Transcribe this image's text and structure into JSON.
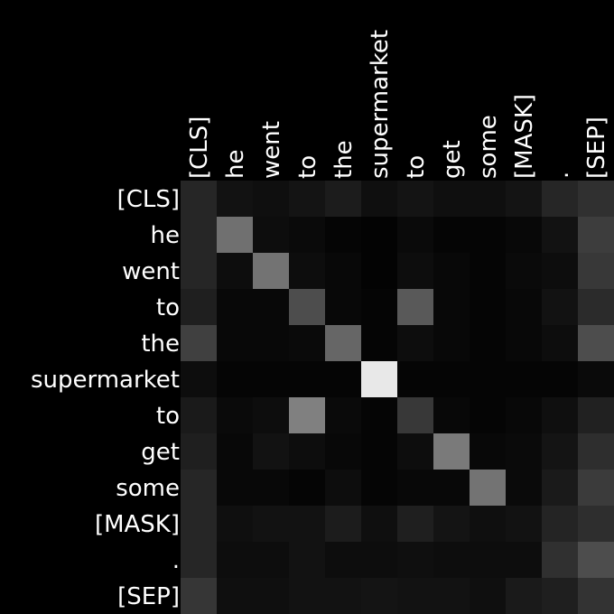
{
  "chart_data": {
    "type": "heatmap",
    "title": "",
    "xlabel": "",
    "ylabel": "",
    "colormap": "gray",
    "background": "#000000",
    "x_labels": [
      "[CLS]",
      "he",
      "went",
      "to",
      "the",
      "supermarket",
      "to",
      "get",
      "some",
      "[MASK]",
      ".",
      "[SEP]"
    ],
    "y_labels": [
      "[CLS]",
      "he",
      "went",
      "to",
      "the",
      "supermarket",
      "to",
      "get",
      "some",
      "[MASK]",
      ".",
      "[SEP]"
    ],
    "values": [
      [
        0.15,
        0.07,
        0.06,
        0.08,
        0.11,
        0.06,
        0.08,
        0.06,
        0.06,
        0.08,
        0.15,
        0.19
      ],
      [
        0.15,
        0.44,
        0.05,
        0.04,
        0.02,
        0.01,
        0.04,
        0.02,
        0.02,
        0.03,
        0.07,
        0.24
      ],
      [
        0.15,
        0.05,
        0.45,
        0.05,
        0.03,
        0.01,
        0.05,
        0.03,
        0.02,
        0.04,
        0.05,
        0.22
      ],
      [
        0.12,
        0.03,
        0.03,
        0.3,
        0.03,
        0.02,
        0.35,
        0.03,
        0.02,
        0.03,
        0.07,
        0.17
      ],
      [
        0.25,
        0.03,
        0.03,
        0.04,
        0.4,
        0.02,
        0.05,
        0.03,
        0.02,
        0.03,
        0.05,
        0.3
      ],
      [
        0.05,
        0.02,
        0.02,
        0.02,
        0.02,
        0.91,
        0.02,
        0.02,
        0.02,
        0.02,
        0.02,
        0.04
      ],
      [
        0.1,
        0.04,
        0.05,
        0.5,
        0.04,
        0.02,
        0.22,
        0.03,
        0.02,
        0.03,
        0.06,
        0.13
      ],
      [
        0.12,
        0.03,
        0.07,
        0.05,
        0.03,
        0.02,
        0.05,
        0.48,
        0.03,
        0.04,
        0.08,
        0.18
      ],
      [
        0.15,
        0.03,
        0.03,
        0.02,
        0.05,
        0.02,
        0.03,
        0.03,
        0.45,
        0.04,
        0.1,
        0.23
      ],
      [
        0.15,
        0.06,
        0.07,
        0.07,
        0.11,
        0.06,
        0.12,
        0.08,
        0.06,
        0.07,
        0.14,
        0.18
      ],
      [
        0.15,
        0.05,
        0.05,
        0.07,
        0.05,
        0.05,
        0.06,
        0.05,
        0.05,
        0.05,
        0.19,
        0.3
      ],
      [
        0.21,
        0.06,
        0.06,
        0.07,
        0.07,
        0.08,
        0.07,
        0.07,
        0.06,
        0.1,
        0.12,
        0.2
      ]
    ]
  }
}
